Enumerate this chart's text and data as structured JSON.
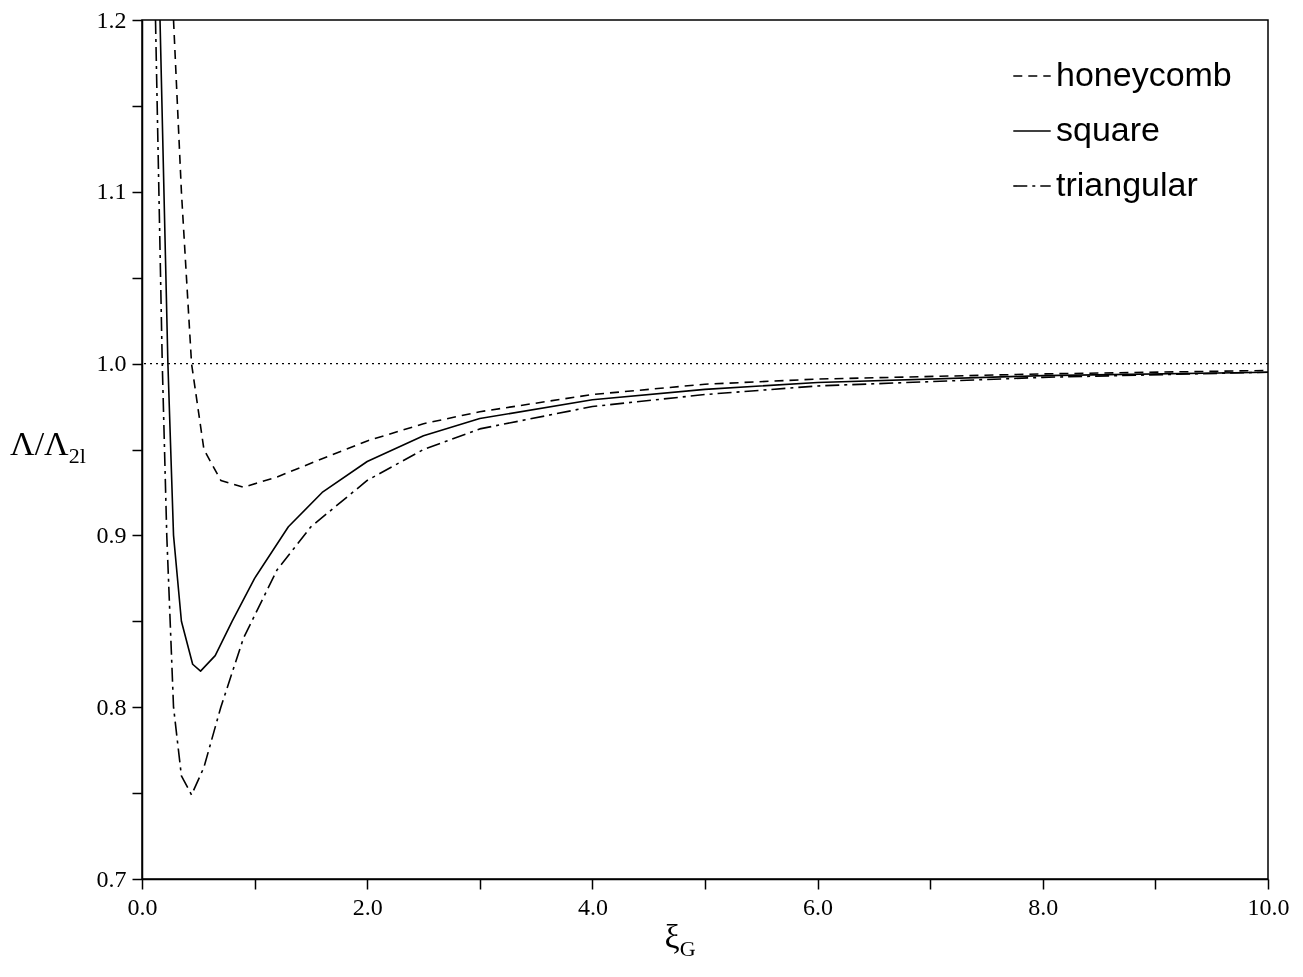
{
  "chart_data": {
    "type": "line",
    "xlabel": "ξ$_{G}$",
    "ylabel": "Λ/Λ$_{2l}$",
    "xlim": [
      0,
      10
    ],
    "ylim": [
      0.7,
      1.2
    ],
    "xticks": [
      {
        "value": 0,
        "label": "0.0"
      },
      {
        "value": 1,
        "label": null
      },
      {
        "value": 2,
        "label": "2.0"
      },
      {
        "value": 3,
        "label": null
      },
      {
        "value": 4,
        "label": "4.0"
      },
      {
        "value": 5,
        "label": null
      },
      {
        "value": 6,
        "label": "6.0"
      },
      {
        "value": 7,
        "label": null
      },
      {
        "value": 8,
        "label": "8.0"
      },
      {
        "value": 9,
        "label": null
      },
      {
        "value": 10,
        "label": "10.0"
      }
    ],
    "yticks": [
      0.7,
      {
        "value": 0.75,
        "label": null
      },
      0.8,
      {
        "value": 0.85,
        "label": null
      },
      0.9,
      {
        "value": 0.95,
        "label": null
      },
      {
        "value": 1,
        "label": "1.0"
      },
      {
        "value": 1.05,
        "label": null
      },
      1.1,
      {
        "value": 1.15,
        "label": null
      },
      1.2
    ],
    "grid": false,
    "legend": "top right",
    "marker": "none",
    "ref_lines": [
      {
        "axis": "y",
        "value": 1,
        "label": null,
        "color": "#000000",
        "line_style": "dotted"
      }
    ],
    "series": [
      {
        "name": "honeycomb",
        "color": "#000000",
        "line_style": "dashed",
        "x": [
          0.28,
          0.35,
          0.44,
          0.55,
          0.7,
          0.9,
          1.2,
          1.5,
          2.0,
          2.5,
          3,
          4,
          5,
          6,
          8,
          10
        ],
        "values": [
          1.2,
          1.1,
          1.0,
          0.95,
          0.932,
          0.928,
          0.934,
          0.942,
          0.955,
          0.965,
          0.972,
          0.982,
          0.988,
          0.991,
          0.994,
          0.996
        ]
      },
      {
        "name": "square",
        "color": "#000000",
        "line_style": "solid",
        "x": [
          0.16,
          0.23,
          0.28,
          0.35,
          0.45,
          0.52,
          0.65,
          0.8,
          1.0,
          1.3,
          1.6,
          2.0,
          2.5,
          3,
          4,
          5,
          6,
          8,
          10
        ],
        "values": [
          1.2,
          1.0,
          0.9,
          0.85,
          0.825,
          0.821,
          0.83,
          0.85,
          0.875,
          0.905,
          0.925,
          0.943,
          0.958,
          0.968,
          0.979,
          0.985,
          0.989,
          0.993,
          0.995
        ]
      },
      {
        "name": "triangular",
        "color": "#000000",
        "line_style": "dashdot",
        "x": [
          0.12,
          0.18,
          0.22,
          0.28,
          0.35,
          0.44,
          0.55,
          0.7,
          0.9,
          1.2,
          1.5,
          2.0,
          2.5,
          3,
          4,
          5,
          6,
          8,
          10
        ],
        "values": [
          1.2,
          1.0,
          0.9,
          0.8,
          0.76,
          0.749,
          0.765,
          0.8,
          0.84,
          0.88,
          0.905,
          0.932,
          0.95,
          0.962,
          0.975,
          0.982,
          0.987,
          0.992,
          0.995
        ]
      }
    ]
  }
}
